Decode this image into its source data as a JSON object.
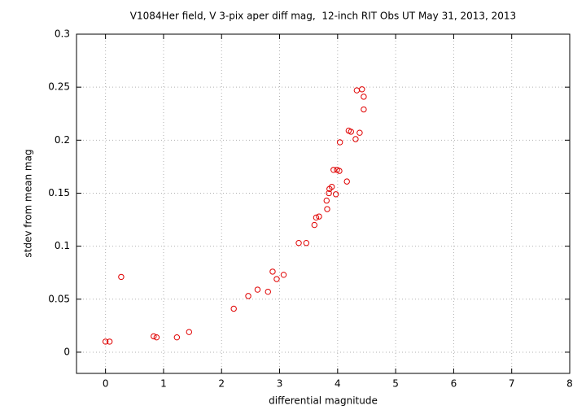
{
  "chart_data": {
    "type": "scatter",
    "title": "V1084Her field, V 3-pix aper diff mag,  12-inch RIT Obs UT May 31, 2013, 2013",
    "x_label": "differential magnitude",
    "y_label": "stdev from mean mag",
    "color": "#e00000",
    "grid": true,
    "xlim": [
      -0.5,
      8
    ],
    "xticks": [
      0,
      1,
      2,
      3,
      4,
      5,
      6,
      7,
      8
    ],
    "ylim": [
      -0.02,
      0.3
    ],
    "yticks": [
      0,
      0.05,
      0.1,
      0.15,
      0.2,
      0.25,
      0.3
    ],
    "x": [
      0,
      0.07,
      0.27,
      0.83,
      0.88,
      1.23,
      1.44,
      2.21,
      2.46,
      2.62,
      2.8,
      2.88,
      2.95,
      3.07,
      3.33,
      3.46,
      3.6,
      3.63,
      3.68,
      3.81,
      3.82,
      3.85,
      3.86,
      3.9,
      3.93,
      3.99,
      4.03,
      3.97,
      4.04,
      4.16,
      4.19,
      4.23,
      4.33,
      4.31,
      4.38,
      4.42,
      4.45,
      4.45
    ],
    "values": [
      0.01,
      0.01,
      0.071,
      0.015,
      0.014,
      0.014,
      0.019,
      0.041,
      0.053,
      0.059,
      0.057,
      0.076,
      0.069,
      0.073,
      0.103,
      0.103,
      0.12,
      0.127,
      0.128,
      0.143,
      0.135,
      0.15,
      0.154,
      0.156,
      0.172,
      0.172,
      0.171,
      0.149,
      0.198,
      0.161,
      0.209,
      0.208,
      0.247,
      0.201,
      0.207,
      0.248,
      0.241,
      0.229
    ]
  }
}
